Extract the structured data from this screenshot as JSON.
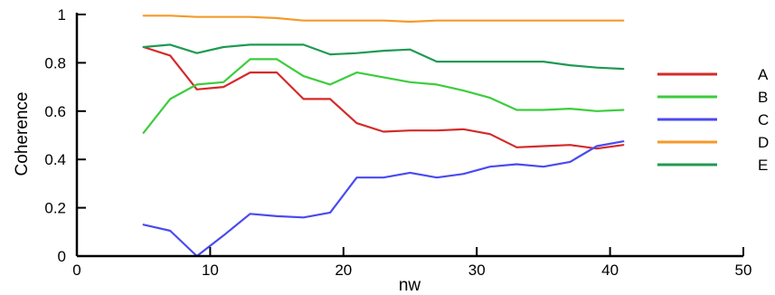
{
  "chart_data": {
    "type": "line",
    "title": "",
    "xlabel": "nw",
    "ylabel": "Coherence",
    "xlim": [
      0,
      50
    ],
    "ylim": [
      0,
      1
    ],
    "xticks": [
      0,
      10,
      20,
      30,
      40,
      50
    ],
    "yticks": [
      0,
      0.2,
      0.4,
      0.6,
      0.8,
      1
    ],
    "ytick_labels": [
      "0",
      "0.2",
      "0.4",
      "0.6",
      "0.8",
      "1"
    ],
    "grid": false,
    "legend_position": "right",
    "x": [
      5,
      7,
      9,
      11,
      13,
      15,
      17,
      19,
      21,
      23,
      25,
      27,
      29,
      31,
      33,
      35,
      37,
      39,
      41
    ],
    "series": [
      {
        "name": "A",
        "color": "#d42a2a",
        "values": [
          0.865,
          0.83,
          0.69,
          0.7,
          0.76,
          0.76,
          0.65,
          0.65,
          0.55,
          0.515,
          0.52,
          0.52,
          0.525,
          0.505,
          0.45,
          0.455,
          0.46,
          0.445,
          0.46
        ]
      },
      {
        "name": "B",
        "color": "#3ccd3c",
        "values": [
          0.51,
          0.65,
          0.71,
          0.72,
          0.815,
          0.815,
          0.745,
          0.71,
          0.76,
          0.74,
          0.72,
          0.71,
          0.685,
          0.655,
          0.605,
          0.605,
          0.61,
          0.6,
          0.605
        ]
      },
      {
        "name": "C",
        "color": "#4a4af0",
        "values": [
          0.13,
          0.105,
          0.0,
          0.085,
          0.175,
          0.165,
          0.16,
          0.18,
          0.325,
          0.325,
          0.345,
          0.325,
          0.34,
          0.37,
          0.38,
          0.37,
          0.39,
          0.455,
          0.475
        ]
      },
      {
        "name": "D",
        "color": "#f59a2a",
        "values": [
          0.995,
          0.995,
          0.99,
          0.99,
          0.99,
          0.985,
          0.975,
          0.975,
          0.975,
          0.975,
          0.97,
          0.975,
          0.975,
          0.975,
          0.975,
          0.975,
          0.975,
          0.975,
          0.975
        ]
      },
      {
        "name": "E",
        "color": "#1f9a52",
        "values": [
          0.865,
          0.875,
          0.84,
          0.865,
          0.875,
          0.875,
          0.875,
          0.835,
          0.84,
          0.85,
          0.855,
          0.805,
          0.805,
          0.805,
          0.805,
          0.805,
          0.79,
          0.78,
          0.775
        ]
      }
    ]
  }
}
